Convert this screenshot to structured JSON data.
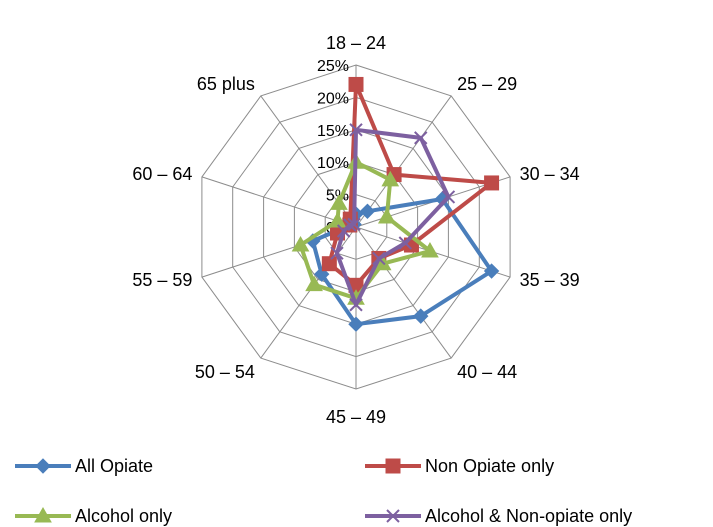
{
  "chart_data": {
    "type": "radar",
    "categories": [
      "18 – 24",
      "25 – 29",
      "30 – 34",
      "35 – 39",
      "40 – 44",
      "45 – 49",
      "50 – 54",
      "55 – 59",
      "60 – 64",
      "65 plus"
    ],
    "rlim": [
      0,
      25
    ],
    "ticks": [
      "0%",
      "5%",
      "10%",
      "15%",
      "20%",
      "25%"
    ],
    "tick_values": [
      0,
      5,
      10,
      15,
      20,
      25
    ],
    "grid": true,
    "legend_position": "bottom",
    "series": [
      {
        "name": "All Opiate",
        "color": "#4a7ebb",
        "marker": "diamond",
        "values": [
          2,
          3,
          14,
          22,
          17,
          15,
          9,
          7,
          1,
          0.5
        ]
      },
      {
        "name": "Non Opiate only",
        "color": "#be4b48",
        "marker": "square",
        "values": [
          22,
          10,
          22,
          9,
          6,
          9,
          7,
          3,
          1,
          1.5
        ]
      },
      {
        "name": "Alcohol only",
        "color": "#98b954",
        "marker": "triangle",
        "values": [
          10,
          9,
          5,
          12,
          7,
          11,
          11,
          9,
          3,
          4.5
        ]
      },
      {
        "name": "Alcohol & Non-opiate only",
        "color": "#7d60a0",
        "marker": "x",
        "values": [
          15,
          17,
          15,
          8,
          6,
          12,
          5,
          2,
          1,
          0.5
        ]
      }
    ]
  }
}
